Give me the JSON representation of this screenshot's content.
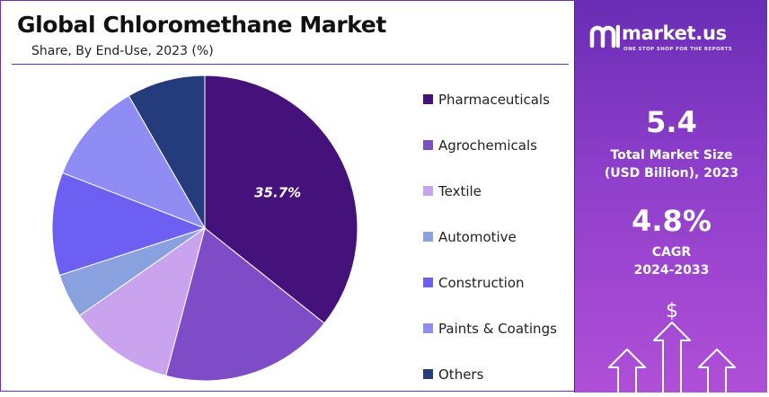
{
  "header": {
    "title": "Global Chloromethane Market",
    "subtitle": "Share, By End-Use, 2023 (%)"
  },
  "chart_data": {
    "type": "pie",
    "title": "Global Chloromethane Market",
    "subtitle": "Share, By End-Use, 2023 (%)",
    "unit": "%",
    "start_angle_deg": 0,
    "direction": "clockwise",
    "labeled_slice": "Pharmaceuticals",
    "legend_position": "right",
    "slices": [
      {
        "label": "Pharmaceuticals",
        "value": 35.7,
        "color": "#45127c",
        "display": "35.7%"
      },
      {
        "label": "Agrochemicals",
        "value": 18.4,
        "color": "#7e4cc7",
        "display": ""
      },
      {
        "label": "Textile",
        "value": 11.2,
        "color": "#c9a3ee",
        "display": ""
      },
      {
        "label": "Automotive",
        "value": 4.7,
        "color": "#8aa1df",
        "display": ""
      },
      {
        "label": "Construction",
        "value": 10.9,
        "color": "#6c5ff2",
        "display": ""
      },
      {
        "label": "Paints & Coatings",
        "value": 10.8,
        "color": "#8f8cf3",
        "display": ""
      },
      {
        "label": "Others",
        "value": 8.3,
        "color": "#253c7c",
        "display": ""
      }
    ]
  },
  "brand": {
    "name": "market.us",
    "tagline": "ONE STOP SHOP FOR THE REPORTS"
  },
  "stats": {
    "market_size_value": "5.4",
    "market_size_label_line1": "Total Market Size",
    "market_size_label_line2": "(USD Billion), 2023",
    "cagr_value": "4.8%",
    "cagr_label_line1": "CAGR",
    "cagr_label_line2": "2024-2033"
  },
  "icons": {
    "growth": "growth-arrows-dollar-icon",
    "logo": "market-us-logo-icon"
  },
  "colors": {
    "panel_top": "#6a2db5",
    "panel_bottom": "#b04fd8",
    "border": "#6b2fb3"
  }
}
